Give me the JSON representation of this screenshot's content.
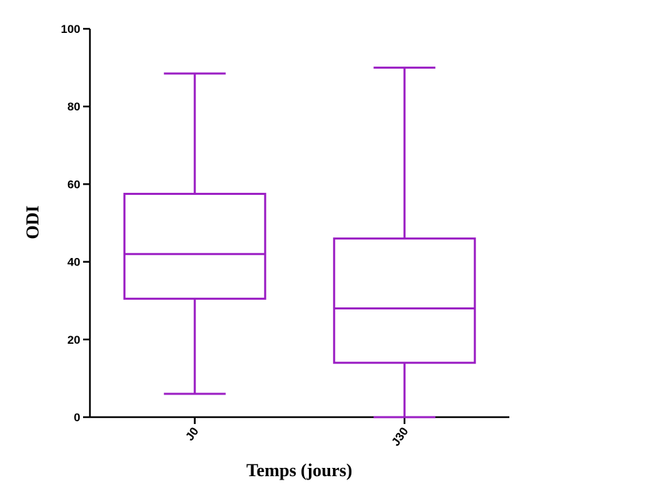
{
  "chart_data": {
    "type": "boxplot",
    "title": "",
    "xlabel": "Temps (jours)",
    "ylabel": "ODI",
    "ylim": [
      0,
      100
    ],
    "yticks": [
      0,
      20,
      40,
      60,
      80,
      100
    ],
    "grid": false,
    "legend": "none",
    "color": "#9b1fc4",
    "categories": [
      "J0",
      "J30"
    ],
    "boxes": [
      {
        "label": "J0",
        "min": 6,
        "q1": 30.5,
        "median": 42,
        "q3": 57.5,
        "max": 88.5
      },
      {
        "label": "J30",
        "min": 0,
        "q1": 14,
        "median": 28,
        "q3": 46,
        "max": 90
      }
    ]
  }
}
